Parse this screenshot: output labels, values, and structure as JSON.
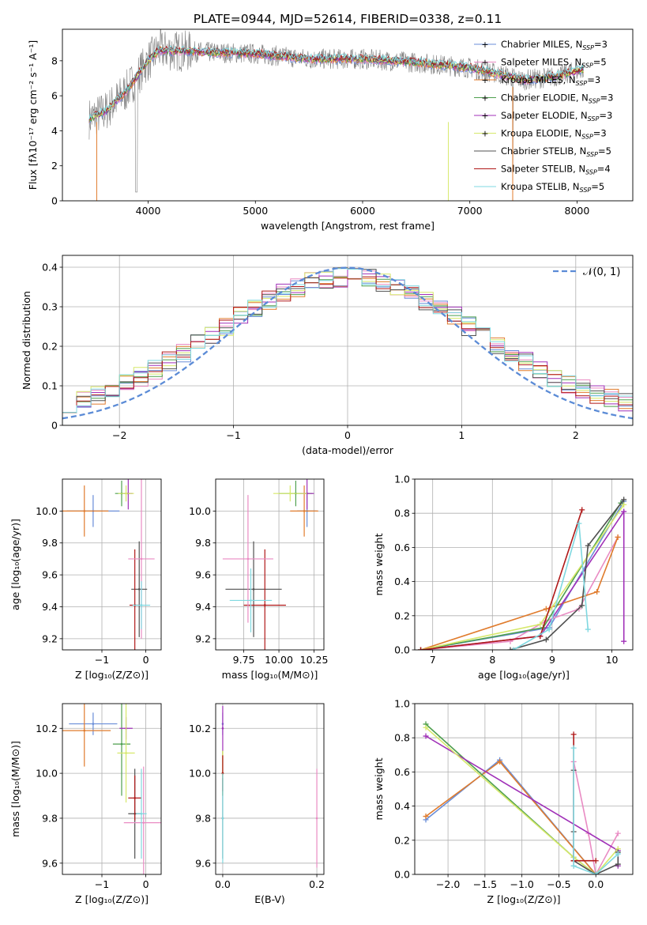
{
  "figure_title": "PLATE=0944, MJD=52614, FIBERID=0338, z=0.11",
  "legend_series": [
    {
      "id": "chab_miles",
      "name": "Chabrier MILES, N",
      "sub": "SSP",
      "tail": "=3",
      "color": "#6a8ed8"
    },
    {
      "id": "salp_miles",
      "name": "Salpeter MILES, N",
      "sub": "SSP",
      "tail": "=5",
      "color": "#e98bc3"
    },
    {
      "id": "krou_miles",
      "name": "Kroupa MILES, N",
      "sub": "SSP",
      "tail": "=3",
      "color": "#e07b2c"
    },
    {
      "id": "chab_elodie",
      "name": "Chabrier ELODIE, N",
      "sub": "SSP",
      "tail": "=3",
      "color": "#4e9f4e"
    },
    {
      "id": "salp_elodie",
      "name": "Salpeter ELODIE, N",
      "sub": "SSP",
      "tail": "=3",
      "color": "#a030b8"
    },
    {
      "id": "krou_elodie",
      "name": "Kroupa ELODIE, N",
      "sub": "SSP",
      "tail": "=3",
      "color": "#d6e86a"
    },
    {
      "id": "chab_stelib",
      "name": "Chabrier STELIB, N",
      "sub": "SSP",
      "tail": "=5",
      "color": "#505050"
    },
    {
      "id": "salp_stelib",
      "name": "Salpeter STELIB, N",
      "sub": "SSP",
      "tail": "=4",
      "color": "#b01818"
    },
    {
      "id": "krou_stelib",
      "name": "Kroupa STELIB, N",
      "sub": "SSP",
      "tail": "=5",
      "color": "#7fd8e0"
    }
  ],
  "chart_data": [
    {
      "id": "spectrum",
      "type": "line",
      "xlabel": "wavelength [Angstrom, rest frame]",
      "ylabel": "Flux [fλ10⁻¹⁷ erg cm⁻² s⁻¹ A⁻¹]",
      "xlim": [
        3200,
        8520
      ],
      "ylim": [
        0,
        9.8
      ],
      "xticks": [
        4000,
        5000,
        6000,
        7000,
        8000
      ],
      "yticks": [
        0,
        2,
        4,
        6,
        8
      ],
      "data_color": "#808080",
      "continuum": {
        "x": [
          3450,
          3600,
          3800,
          4000,
          4100,
          4500,
          5000,
          5500,
          6000,
          6500,
          7000,
          7300,
          7500,
          7800,
          8050
        ],
        "y": [
          4.7,
          5.1,
          6.3,
          8.0,
          8.6,
          8.5,
          8.4,
          8.1,
          8.1,
          7.9,
          7.6,
          7.2,
          6.9,
          7.1,
          7.5
        ]
      },
      "data_range": [
        3450,
        8060
      ],
      "model_range": [
        3450,
        8060
      ]
    },
    {
      "id": "residuals",
      "type": "step",
      "xlabel": "(data-model)/error",
      "ylabel": "Normed distribution",
      "xlim": [
        -2.5,
        2.5
      ],
      "ylim": [
        0,
        0.43
      ],
      "xticks": [
        -2,
        -1,
        0,
        1,
        2
      ],
      "yticks": [
        0,
        0.1,
        0.2,
        0.3,
        0.4
      ],
      "gaussian_label": "𝒩(0, 1)",
      "gaussian_color": "#5b8bd6",
      "bins": 40
    },
    {
      "id": "age_vs_Z",
      "type": "errorbar",
      "xlabel": "Z [log₁₀(Z/Z⊙)]",
      "ylabel": "age  [log₁₀(age/yr)]",
      "xlim": [
        -1.9,
        0.35
      ],
      "ylim": [
        9.13,
        10.2
      ],
      "xticks": [
        -1,
        0
      ],
      "yticks": [
        9.2,
        9.4,
        9.6,
        9.8,
        10.0
      ],
      "points": [
        {
          "s": "chab_miles",
          "x": -1.2,
          "y": 10.0,
          "xe": 0.6,
          "ye": 0.1
        },
        {
          "s": "krou_miles",
          "x": -1.4,
          "y": 10.0,
          "xe": 0.55,
          "ye": 0.16
        },
        {
          "s": "chab_elodie",
          "x": -0.55,
          "y": 10.11,
          "xe": 0.15,
          "ye": 0.08
        },
        {
          "s": "salp_elodie",
          "x": -0.4,
          "y": 10.11,
          "xe": 0.1,
          "ye": 0.1
        },
        {
          "s": "krou_elodie",
          "x": -0.45,
          "y": 10.11,
          "xe": 0.18,
          "ye": 0.05
        },
        {
          "s": "chab_stelib",
          "x": -0.15,
          "y": 9.51,
          "xe": 0.18,
          "ye": 0.3
        },
        {
          "s": "salp_stelib",
          "x": -0.25,
          "y": 9.41,
          "xe": 0.12,
          "ye": 0.35
        },
        {
          "s": "salp_miles",
          "x": -0.1,
          "y": 9.7,
          "xe": 0.3,
          "ye": 0.5
        },
        {
          "s": "krou_stelib",
          "x": -0.1,
          "y": 9.41,
          "xe": 0.2,
          "ye": 0.15
        }
      ]
    },
    {
      "id": "age_vs_mass",
      "type": "errorbar",
      "xlabel": "mass [log₁₀(M/M⊙)]",
      "ylabel": "",
      "xlim": [
        9.55,
        10.32
      ],
      "ylim": [
        9.13,
        10.2
      ],
      "xticks": [
        9.75,
        10.0,
        10.25
      ],
      "yticks": [
        9.2,
        9.4,
        9.6,
        9.8,
        10.0
      ],
      "xtick_labels": [
        "9.75",
        "10.00",
        "10.25"
      ],
      "points": [
        {
          "s": "chab_miles",
          "x": 10.2,
          "y": 10.0,
          "xe": 0.07,
          "ye": 0.1
        },
        {
          "s": "krou_miles",
          "x": 10.18,
          "y": 10.0,
          "xe": 0.1,
          "ye": 0.16
        },
        {
          "s": "chab_elodie",
          "x": 10.12,
          "y": 10.11,
          "xe": 0.12,
          "ye": 0.08
        },
        {
          "s": "salp_elodie",
          "x": 10.2,
          "y": 10.11,
          "xe": 0.05,
          "ye": 0.1
        },
        {
          "s": "krou_elodie",
          "x": 10.08,
          "y": 10.11,
          "xe": 0.12,
          "ye": 0.05
        },
        {
          "s": "chab_stelib",
          "x": 9.82,
          "y": 9.51,
          "xe": 0.2,
          "ye": 0.3
        },
        {
          "s": "salp_stelib",
          "x": 9.9,
          "y": 9.41,
          "xe": 0.15,
          "ye": 0.35
        },
        {
          "s": "salp_miles",
          "x": 9.78,
          "y": 9.7,
          "xe": 0.18,
          "ye": 0.4
        },
        {
          "s": "krou_stelib",
          "x": 9.8,
          "y": 9.44,
          "xe": 0.15,
          "ye": 0.2
        }
      ]
    },
    {
      "id": "weight_vs_age",
      "type": "line",
      "xlabel": "age  [log₁₀(age/yr)]",
      "ylabel": "mass weight",
      "xlim": [
        6.7,
        10.35
      ],
      "ylim": [
        0,
        1
      ],
      "xticks": [
        7,
        8,
        9,
        10
      ],
      "yticks": [
        0,
        0.2,
        0.4,
        0.6,
        0.8,
        1.0
      ],
      "series": [
        {
          "s": "chab_miles",
          "x": [
            6.8,
            8.95,
            10.2
          ],
          "y": [
            0.0,
            0.13,
            0.87
          ]
        },
        {
          "s": "salp_miles",
          "x": [
            6.8,
            8.3,
            8.9,
            9.45,
            10.1
          ],
          "y": [
            0.0,
            0.05,
            0.17,
            0.24,
            0.66
          ]
        },
        {
          "s": "krou_miles",
          "x": [
            6.8,
            8.9,
            9.75,
            10.1
          ],
          "y": [
            0.0,
            0.24,
            0.34,
            0.66
          ]
        },
        {
          "s": "chab_elodie",
          "x": [
            6.8,
            8.85,
            10.15
          ],
          "y": [
            0.0,
            0.13,
            0.86
          ]
        },
        {
          "s": "salp_elodie",
          "x": [
            6.8,
            8.8,
            10.2,
            10.2
          ],
          "y": [
            0.0,
            0.08,
            0.81,
            0.05
          ]
        },
        {
          "s": "krou_elodie",
          "x": [
            6.8,
            8.8,
            10.2
          ],
          "y": [
            0.0,
            0.15,
            0.85
          ]
        },
        {
          "s": "chab_stelib",
          "x": [
            8.3,
            8.9,
            9.5,
            9.6,
            10.2
          ],
          "y": [
            0.0,
            0.06,
            0.26,
            0.61,
            0.88
          ]
        },
        {
          "s": "salp_stelib",
          "x": [
            6.8,
            8.8,
            9.5
          ],
          "y": [
            0.0,
            0.08,
            0.82
          ]
        },
        {
          "s": "krou_stelib",
          "x": [
            8.35,
            8.95,
            9.45,
            9.6
          ],
          "y": [
            0.0,
            0.12,
            0.74,
            0.12
          ]
        }
      ]
    },
    {
      "id": "mass_vs_Z",
      "type": "errorbar",
      "xlabel": "Z [log₁₀(Z/Z⊙)]",
      "ylabel": "mass [log₁₀(M/M⊙)]",
      "xlim": [
        -1.9,
        0.35
      ],
      "ylim": [
        9.55,
        10.31
      ],
      "xticks": [
        -1,
        0
      ],
      "yticks": [
        9.6,
        9.8,
        10.0,
        10.2
      ],
      "points": [
        {
          "s": "chab_miles",
          "x": -1.2,
          "y": 10.22,
          "xe": 0.55,
          "ye": 0.05
        },
        {
          "s": "krou_miles",
          "x": -1.4,
          "y": 10.19,
          "xe": 0.6,
          "ye": 0.16
        },
        {
          "s": "chab_elodie",
          "x": -0.55,
          "y": 10.13,
          "xe": 0.2,
          "ye": 0.23
        },
        {
          "s": "salp_elodie",
          "x": -0.45,
          "y": 10.2,
          "xe": 0.15,
          "ye": 0.05
        },
        {
          "s": "krou_elodie",
          "x": -0.45,
          "y": 10.09,
          "xe": 0.2,
          "ye": 0.22
        },
        {
          "s": "chab_stelib",
          "x": -0.25,
          "y": 9.82,
          "xe": 0.15,
          "ye": 0.2
        },
        {
          "s": "salp_stelib",
          "x": -0.25,
          "y": 9.89,
          "xe": 0.15,
          "ye": 0.1
        },
        {
          "s": "salp_miles",
          "x": -0.05,
          "y": 9.78,
          "xe": 0.45,
          "ye": 0.25
        },
        {
          "s": "krou_stelib",
          "x": -0.1,
          "y": 9.82,
          "xe": 0.12,
          "ye": 0.2
        }
      ]
    },
    {
      "id": "mass_vs_ebv",
      "type": "errorbar",
      "xlabel": "E(B-V)",
      "ylabel": "",
      "xlim": [
        -0.015,
        0.215
      ],
      "ylim": [
        9.55,
        10.31
      ],
      "xticks": [
        0.0,
        0.2
      ],
      "yticks": [
        9.6,
        9.8,
        10.0,
        10.2
      ],
      "xtick_labels": [
        "0.0",
        "0.2"
      ],
      "points": [
        {
          "s": "chab_miles",
          "x": 0.0,
          "y": 10.22,
          "xe": 0,
          "ye": 0.05
        },
        {
          "s": "krou_miles",
          "x": 0.0,
          "y": 10.0,
          "xe": 0,
          "ye": 0.1
        },
        {
          "s": "chab_elodie",
          "x": 0.0,
          "y": 10.0,
          "xe": 0,
          "ye": 0.1
        },
        {
          "s": "salp_elodie",
          "x": 0.0,
          "y": 10.2,
          "xe": 0,
          "ye": 0.1
        },
        {
          "s": "krou_elodie",
          "x": 0.0,
          "y": 10.0,
          "xe": 0,
          "ye": 0.1
        },
        {
          "s": "chab_stelib",
          "x": 0.0,
          "y": 9.8,
          "xe": 0,
          "ye": 0.18
        },
        {
          "s": "salp_stelib",
          "x": 0.0,
          "y": 10.0,
          "xe": 0,
          "ye": 0.08
        },
        {
          "s": "salp_miles",
          "x": 0.2,
          "y": 9.8,
          "xe": 0,
          "ye": 0.22
        },
        {
          "s": "krou_stelib",
          "x": 0.0,
          "y": 9.8,
          "xe": 0,
          "ye": 0.2
        }
      ]
    },
    {
      "id": "weight_vs_Z",
      "type": "line",
      "xlabel": "Z [log₁₀(Z/Z⊙)]",
      "ylabel": "mass weight",
      "xlim": [
        -2.45,
        0.5
      ],
      "ylim": [
        0,
        1
      ],
      "xticks": [
        -2.0,
        -1.5,
        -1.0,
        -0.5,
        0.0
      ],
      "yticks": [
        0,
        0.2,
        0.4,
        0.6,
        0.8,
        1.0
      ],
      "xtick_labels": [
        "−2.0",
        "−1.5",
        "−1.0",
        "−0.5",
        "0.0"
      ],
      "series": [
        {
          "s": "chab_miles",
          "x": [
            -2.3,
            -1.3,
            0.0
          ],
          "y": [
            0.32,
            0.67,
            0.0
          ]
        },
        {
          "s": "salp_miles",
          "x": [
            -0.3,
            -0.3,
            -0.1,
            0.0,
            0.3
          ],
          "y": [
            0.05,
            0.66,
            0.24,
            0.0,
            0.24
          ]
        },
        {
          "s": "krou_miles",
          "x": [
            -2.3,
            -1.3,
            0.0
          ],
          "y": [
            0.34,
            0.66,
            0.0
          ]
        },
        {
          "s": "chab_elodie",
          "x": [
            -2.3,
            -0.3,
            0.0
          ],
          "y": [
            0.88,
            0.1,
            0.0
          ]
        },
        {
          "s": "salp_elodie",
          "x": [
            -2.3,
            0.3,
            0.3
          ],
          "y": [
            0.81,
            0.14,
            0.05
          ]
        },
        {
          "s": "krou_elodie",
          "x": [
            -2.3,
            -0.3,
            0.0,
            0.3
          ],
          "y": [
            0.86,
            0.1,
            0.0,
            0.15
          ]
        },
        {
          "s": "chab_stelib",
          "x": [
            -0.3,
            -0.3,
            -0.3,
            0.0,
            0.3,
            0.3
          ],
          "y": [
            0.61,
            0.25,
            0.08,
            0.0,
            0.06,
            0.13
          ]
        },
        {
          "s": "salp_stelib",
          "x": [
            -0.3,
            -0.3,
            -0.3,
            0.0
          ],
          "y": [
            0.82,
            0.08,
            0.08,
            0.08
          ]
        },
        {
          "s": "krou_stelib",
          "x": [
            -0.3,
            -0.3,
            0.0,
            0.3
          ],
          "y": [
            0.74,
            0.05,
            0.0,
            0.12
          ]
        }
      ]
    }
  ]
}
